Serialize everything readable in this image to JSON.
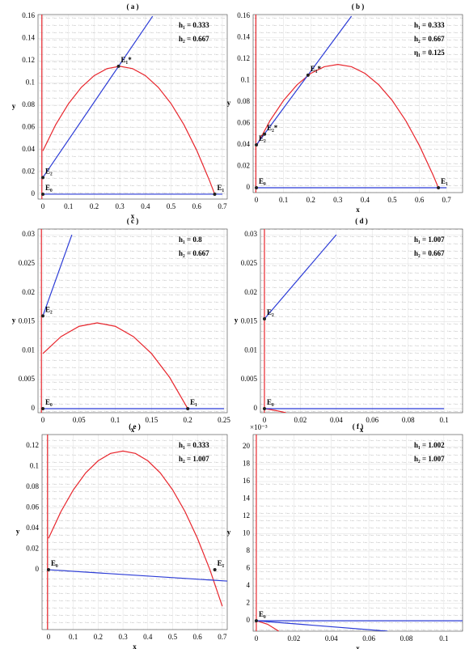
{
  "chart_data": [
    {
      "type": "line",
      "title": "( a )",
      "xlabel": "x",
      "ylabel": "y",
      "grid": true,
      "xlim": [
        -0.019,
        0.719
      ],
      "ylim": [
        -0.0044,
        0.1615
      ],
      "xticks": [
        0,
        0.1,
        0.2,
        0.3,
        0.4,
        0.5,
        0.6,
        0.7
      ],
      "yticks": [
        0,
        0.02,
        0.04,
        0.06,
        0.08,
        0.1,
        0.12,
        0.14,
        0.16
      ],
      "series": [
        {
          "color": "#e8262d",
          "x": [
            0,
            0.05,
            0.1,
            0.15,
            0.2,
            0.25,
            0.3,
            0.35,
            0.4,
            0.45,
            0.5,
            0.55,
            0.6,
            0.65,
            0.67
          ],
          "values": [
            0.039,
            0.0625,
            0.0814,
            0.0961,
            0.1066,
            0.1129,
            0.115,
            0.1129,
            0.1066,
            0.0961,
            0.0814,
            0.0625,
            0.0394,
            0.0121,
            0
          ]
        },
        {
          "color": "#e8262d",
          "x": [
            -0.004,
            -0.004
          ],
          "values": [
            -0.0044,
            0.1615
          ]
        },
        {
          "color": "#2b3bd6",
          "x": [
            0,
            0.428
          ],
          "values": [
            0.015,
            0.16
          ]
        },
        {
          "color": "#2b3bd6",
          "x": [
            0,
            0.7
          ],
          "values": [
            0,
            0
          ]
        }
      ],
      "points": [
        {
          "label": "E₀",
          "x": 0,
          "y": 0
        },
        {
          "label": "E₂",
          "x": 0,
          "y": 0.015
        },
        {
          "label": "E₁*",
          "x": 0.295,
          "y": 0.115
        },
        {
          "label": "E₁",
          "x": 0.67,
          "y": 0
        }
      ],
      "annotations": [
        "h₁ = 0.333",
        "h₂ = 0.667"
      ]
    },
    {
      "type": "line",
      "title": "( b )",
      "xlabel": "x",
      "ylabel": "y",
      "grid": true,
      "xlim": [
        -0.012,
        0.759
      ],
      "ylim": [
        -0.0045,
        0.1615
      ],
      "xticks": [
        0,
        0.1,
        0.2,
        0.3,
        0.4,
        0.5,
        0.6,
        0.7
      ],
      "yticks": [
        0,
        0.02,
        0.04,
        0.06,
        0.08,
        0.1,
        0.12,
        0.14,
        0.16
      ],
      "series": [
        {
          "color": "#e8262d",
          "x": [
            0,
            0.05,
            0.1,
            0.15,
            0.2,
            0.25,
            0.3,
            0.35,
            0.4,
            0.45,
            0.5,
            0.55,
            0.6,
            0.65,
            0.67
          ],
          "values": [
            0.039,
            0.0625,
            0.0814,
            0.0961,
            0.1066,
            0.1129,
            0.115,
            0.1129,
            0.1066,
            0.0961,
            0.0814,
            0.0625,
            0.0394,
            0.0121,
            0
          ]
        },
        {
          "color": "#e8262d",
          "x": [
            -0.002,
            -0.002
          ],
          "values": [
            -0.0045,
            0.1615
          ]
        },
        {
          "color": "#2b3bd6",
          "x": [
            0,
            0.35
          ],
          "values": [
            0.04,
            0.16
          ]
        },
        {
          "color": "#2b3bd6",
          "x": [
            0,
            0.7
          ],
          "values": [
            0,
            0
          ]
        }
      ],
      "points": [
        {
          "label": "E₀",
          "x": 0,
          "y": 0
        },
        {
          "label": "E₂",
          "x": 0,
          "y": 0.04
        },
        {
          "label": "E₂*",
          "x": 0.03,
          "y": 0.05
        },
        {
          "label": "E₁*",
          "x": 0.19,
          "y": 0.105
        },
        {
          "label": "E₁",
          "x": 0.67,
          "y": 0
        }
      ],
      "annotations": [
        "h₁ = 0.333",
        "h₂ = 0.667",
        "η₁ = 0.125"
      ]
    },
    {
      "type": "line",
      "title": "( c )",
      "xlabel": "x",
      "ylabel": "y",
      "grid": true,
      "xlim": [
        -0.0067,
        0.2545
      ],
      "ylim": [
        -0.0007,
        0.031
      ],
      "xticks": [
        0,
        0.05,
        0.1,
        0.15,
        0.2,
        0.25
      ],
      "yticks": [
        0,
        0.005,
        0.01,
        0.015,
        0.02,
        0.025,
        0.03
      ],
      "series": [
        {
          "color": "#e8262d",
          "x": [
            0,
            0.025,
            0.05,
            0.075,
            0.1,
            0.125,
            0.15,
            0.175,
            0.2
          ],
          "values": [
            0.0095,
            0.01243,
            0.01421,
            0.0148,
            0.01421,
            0.01243,
            0.0095,
            0.00539,
            0
          ]
        },
        {
          "color": "#e8262d",
          "x": [
            -0.002,
            -0.002
          ],
          "values": [
            -0.0007,
            0.031
          ]
        },
        {
          "color": "#2b3bd6",
          "x": [
            0,
            0.04
          ],
          "values": [
            0.016,
            0.03
          ]
        },
        {
          "color": "#2b3bd6",
          "x": [
            0,
            0.25
          ],
          "values": [
            0,
            0
          ]
        }
      ],
      "points": [
        {
          "label": "E₀",
          "x": 0,
          "y": 0
        },
        {
          "label": "E₂",
          "x": 0,
          "y": 0.016
        },
        {
          "label": "E₁",
          "x": 0.2,
          "y": 0
        }
      ],
      "annotations": [
        "h₁ = 0.8",
        "h₂ = 0.667"
      ]
    },
    {
      "type": "line",
      "title": "( d )",
      "xlabel": "x",
      "ylabel": "y",
      "grid": true,
      "xlim": [
        -0.00225,
        0.1103
      ],
      "ylim": [
        -0.0007,
        0.031
      ],
      "xticks": [
        0,
        0.02,
        0.04,
        0.06,
        0.08,
        0.1
      ],
      "yticks": [
        0,
        0.005,
        0.01,
        0.015,
        0.02,
        0.025,
        0.03
      ],
      "series": [
        {
          "color": "#e8262d",
          "x": [
            0,
            0.006,
            0.012
          ],
          "values": [
            0,
            -0.0003,
            -0.0007
          ]
        },
        {
          "color": "#e8262d",
          "x": [
            0,
            0
          ],
          "values": [
            -0.0007,
            0.031
          ]
        },
        {
          "color": "#2b3bd6",
          "x": [
            0,
            0.04
          ],
          "values": [
            0.0155,
            0.03
          ]
        },
        {
          "color": "#2b3bd6",
          "x": [
            0,
            0.1
          ],
          "values": [
            0,
            0
          ]
        }
      ],
      "points": [
        {
          "label": "E₀",
          "x": 0,
          "y": 0
        },
        {
          "label": "E₂",
          "x": 0,
          "y": 0.0155
        }
      ],
      "annotations": [
        "h₁ = 1.007",
        "h₂ = 0.667"
      ]
    },
    {
      "type": "line",
      "title": "( e )",
      "xlabel": "x",
      "ylabel": "y",
      "grid": true,
      "xlim": [
        -0.026,
        0.72
      ],
      "ylim": [
        -0.058,
        0.131
      ],
      "xticks": [
        0,
        0.1,
        0.2,
        0.3,
        0.4,
        0.5,
        0.6,
        0.7
      ],
      "yticks": [
        0,
        0.02,
        0.04,
        0.06,
        0.08,
        0.1,
        0.12
      ],
      "series": [
        {
          "color": "#e8262d",
          "x": [
            0,
            0.05,
            0.1,
            0.15,
            0.2,
            0.25,
            0.3,
            0.35,
            0.4,
            0.45,
            0.5,
            0.55,
            0.6,
            0.65,
            0.7
          ],
          "values": [
            0.0304,
            0.0563,
            0.0774,
            0.0939,
            0.1056,
            0.1127,
            0.115,
            0.1127,
            0.1056,
            0.0939,
            0.0774,
            0.0563,
            0.0304,
            0.0001,
            -0.0354
          ]
        },
        {
          "color": "#e8262d",
          "x": [
            -0.004,
            -0.004
          ],
          "values": [
            -0.058,
            0.131
          ]
        },
        {
          "color": "#2b3bd6",
          "x": [
            0,
            0.72
          ],
          "values": [
            0,
            -0.011
          ]
        }
      ],
      "points": [
        {
          "label": "E₀",
          "x": 0,
          "y": 0
        },
        {
          "label": "E₁",
          "x": 0.67,
          "y": 0
        }
      ],
      "annotations": [
        "h₁ = 0.333",
        "h₂ = 1.007"
      ]
    },
    {
      "type": "line",
      "title": "( f )",
      "xlabel": "x",
      "ylabel": "y",
      "grid": true,
      "y_multiplier": "×10⁻³",
      "xlim": [
        -0.0017,
        0.11
      ],
      "ylim": [
        -1.2,
        21.4
      ],
      "xticks": [
        0,
        0.02,
        0.04,
        0.06,
        0.08,
        0.1
      ],
      "yticks": [
        0,
        2,
        4,
        6,
        8,
        10,
        12,
        14,
        16,
        18,
        20
      ],
      "series": [
        {
          "color": "#e8262d",
          "x": [
            0,
            0.006,
            0.012
          ],
          "values": [
            0,
            -0.4,
            -1.2
          ]
        },
        {
          "color": "#e8262d",
          "x": [
            0,
            0
          ],
          "values": [
            -1.2,
            21.4
          ]
        },
        {
          "color": "#2b3bd6",
          "x": [
            0,
            0.07
          ],
          "values": [
            0,
            -1.2
          ]
        },
        {
          "color": "#2b3bd6",
          "x": [
            0,
            0.11
          ],
          "values": [
            0,
            0
          ]
        }
      ],
      "points": [
        {
          "label": "E₀",
          "x": 0,
          "y": 0
        }
      ],
      "annotations": [
        "h₁ = 1.002",
        "h₂ = 1.007"
      ]
    }
  ]
}
